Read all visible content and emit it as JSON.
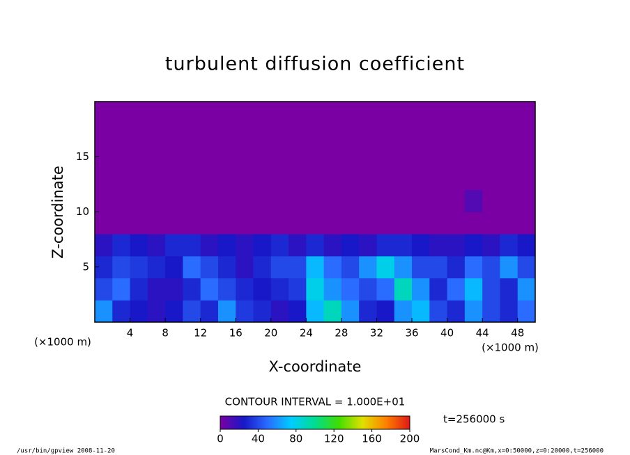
{
  "chart_data": {
    "type": "heatmap",
    "title": "turbulent diffusion coefficient",
    "x_label": "X-coordinate",
    "y_label": "Z-coordinate",
    "x_unit": "(×1000 m)",
    "y_unit": "(×1000 m)",
    "x": [
      1,
      3,
      5,
      7,
      9,
      11,
      13,
      15,
      17,
      19,
      21,
      23,
      25,
      27,
      29,
      31,
      33,
      35,
      37,
      39,
      41,
      43,
      45,
      47,
      49
    ],
    "y": [
      1,
      3,
      5,
      7,
      9,
      11,
      13,
      15,
      17,
      19
    ],
    "z": [
      [
        60,
        30,
        25,
        20,
        25,
        40,
        30,
        60,
        35,
        30,
        20,
        25,
        70,
        90,
        60,
        30,
        25,
        60,
        70,
        40,
        30,
        60,
        40,
        30,
        50
      ],
      [
        40,
        50,
        30,
        20,
        20,
        30,
        50,
        40,
        30,
        25,
        30,
        35,
        80,
        60,
        50,
        40,
        50,
        90,
        60,
        30,
        50,
        70,
        40,
        30,
        60
      ],
      [
        30,
        40,
        35,
        30,
        25,
        50,
        40,
        30,
        20,
        30,
        40,
        40,
        70,
        50,
        40,
        60,
        80,
        60,
        40,
        40,
        30,
        50,
        40,
        60,
        40
      ],
      [
        20,
        30,
        25,
        20,
        30,
        30,
        20,
        25,
        20,
        25,
        30,
        20,
        30,
        20,
        25,
        20,
        30,
        30,
        25,
        20,
        20,
        25,
        20,
        30,
        25
      ],
      [
        0,
        0,
        0,
        0,
        0,
        0,
        0,
        0,
        0,
        0,
        0,
        0,
        0,
        0,
        0,
        0,
        0,
        0,
        0,
        0,
        0,
        0,
        0,
        0,
        0
      ],
      [
        0,
        0,
        0,
        0,
        0,
        0,
        0,
        0,
        0,
        0,
        0,
        0,
        0,
        0,
        0,
        0,
        0,
        0,
        0,
        0,
        0,
        10,
        0,
        0,
        0
      ],
      [
        0,
        0,
        0,
        0,
        0,
        0,
        0,
        0,
        0,
        0,
        0,
        0,
        0,
        0,
        0,
        0,
        0,
        0,
        0,
        0,
        0,
        0,
        0,
        0,
        0
      ],
      [
        0,
        0,
        0,
        0,
        0,
        0,
        0,
        0,
        0,
        0,
        0,
        0,
        0,
        0,
        0,
        0,
        0,
        0,
        0,
        0,
        0,
        0,
        0,
        0,
        0
      ],
      [
        0,
        0,
        0,
        0,
        0,
        0,
        0,
        0,
        0,
        0,
        0,
        0,
        0,
        0,
        0,
        0,
        0,
        0,
        0,
        0,
        0,
        0,
        0,
        0,
        0
      ],
      [
        0,
        0,
        0,
        0,
        0,
        0,
        0,
        0,
        0,
        0,
        0,
        0,
        0,
        0,
        0,
        0,
        0,
        0,
        0,
        0,
        0,
        0,
        0,
        0,
        0
      ]
    ],
    "xlim": [
      0,
      50
    ],
    "ylim": [
      0,
      20
    ],
    "xticks": [
      4,
      8,
      12,
      16,
      20,
      24,
      28,
      32,
      36,
      40,
      44,
      48
    ],
    "yticks": [
      5,
      10,
      15
    ],
    "clim": [
      0,
      200
    ],
    "cticks": [
      0,
      40,
      80,
      120,
      160,
      200
    ],
    "colorscale": [
      "#7a00a4",
      "#1818c8",
      "#2a6cff",
      "#00ccff",
      "#00dd90",
      "#40dd00",
      "#e0e000",
      "#ff8000",
      "#e01818"
    ],
    "contour_interval": "CONTOUR INTERVAL = 1.000E+01",
    "time_label": "t=256000 s",
    "footer_left": "/usr/bin/gpview  2008-11-20",
    "footer_right": "MarsCond_Km.nc@Km,x=0:50000,z=0:20000,t=256000"
  }
}
